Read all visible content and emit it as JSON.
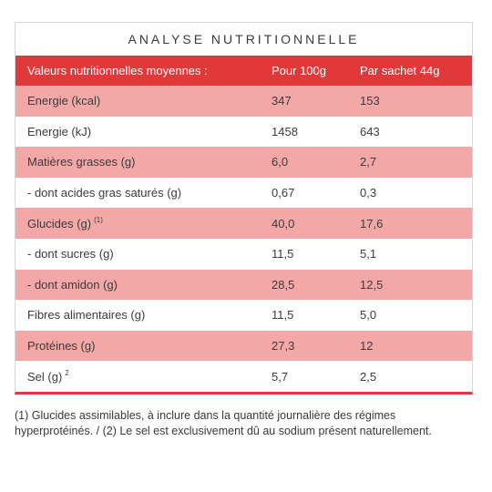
{
  "title": "ANALYSE NUTRITIONNELLE",
  "header": {
    "col1": "Valeurs nutritionnelles moyennes :",
    "col2": "Pour 100g",
    "col3": "Par sachet 44g"
  },
  "rows": [
    {
      "label": "Energie (kcal)",
      "sup": "",
      "per100": "347",
      "perSachet": "153"
    },
    {
      "label": "Energie (kJ)",
      "sup": "",
      "per100": "1458",
      "perSachet": "643"
    },
    {
      "label": "Matières grasses (g)",
      "sup": "",
      "per100": "6,0",
      "perSachet": "2,7"
    },
    {
      "label": "- dont acides gras saturés (g)",
      "sup": "",
      "per100": "0,67",
      "perSachet": "0,3"
    },
    {
      "label": "Glucides (g)",
      "sup": "(1)",
      "per100": "40,0",
      "perSachet": "17,6"
    },
    {
      "label": "- dont sucres (g)",
      "sup": "",
      "per100": "11,5",
      "perSachet": "5,1"
    },
    {
      "label": "- dont amidon (g)",
      "sup": "",
      "per100": "28,5",
      "perSachet": "12,5"
    },
    {
      "label": "Fibres alimentaires (g)",
      "sup": "",
      "per100": "11,5",
      "perSachet": "5,0"
    },
    {
      "label": "Protéines (g)",
      "sup": "",
      "per100": "27,3",
      "perSachet": "12"
    },
    {
      "label": "Sel (g)",
      "sup": "2",
      "per100": "5,7",
      "perSachet": "2,5"
    }
  ],
  "footnote": "(1) Glucides assimilables, à inclure dans la quantité journalière des régimes hyperprotéinés. / (2) Le sel est exclusivement dû au sodium présent naturellement.",
  "colors": {
    "accent": "#e1393a",
    "shaded_row": "#f3a7a7"
  }
}
